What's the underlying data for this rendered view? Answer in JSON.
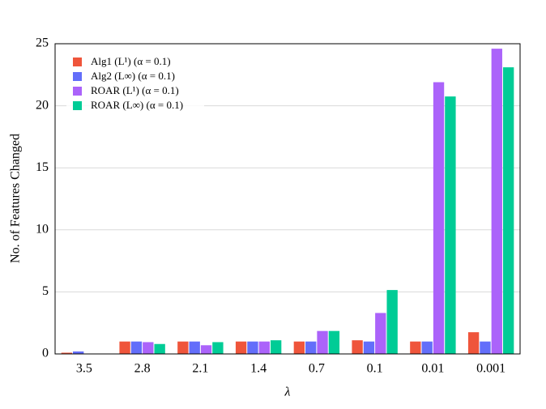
{
  "chart_data": {
    "type": "bar",
    "x_label": "λ",
    "y_label": "No. of Features Changed",
    "categories": [
      "3.5",
      "2.8",
      "2.1",
      "1.4",
      "0.7",
      "0.1",
      "0.01",
      "0.001"
    ],
    "series": [
      {
        "name": "Alg1 (L¹) (α = 0.1)",
        "color": "#ef553b",
        "values": [
          0.1,
          1.0,
          1.0,
          1.0,
          1.0,
          1.1,
          1.0,
          1.75
        ]
      },
      {
        "name": "Alg2 (L∞) (α = 0.1)",
        "color": "#636efa",
        "values": [
          0.2,
          1.0,
          1.0,
          1.0,
          1.0,
          1.0,
          1.0,
          1.0
        ]
      },
      {
        "name": "ROAR (L¹) (α = 0.1)",
        "color": "#ab63fa",
        "values": [
          0,
          0.95,
          0.7,
          1.0,
          1.85,
          3.3,
          21.9,
          24.6
        ]
      },
      {
        "name": "ROAR (L∞) (α = 0.1)",
        "color": "#00cc96",
        "values": [
          0,
          0.8,
          0.95,
          1.1,
          1.85,
          5.15,
          20.75,
          23.1
        ]
      }
    ],
    "ylim": [
      0,
      25
    ],
    "yticks": [
      0,
      5,
      10,
      15,
      20,
      25
    ],
    "grid": true,
    "legend": "upper-left"
  }
}
